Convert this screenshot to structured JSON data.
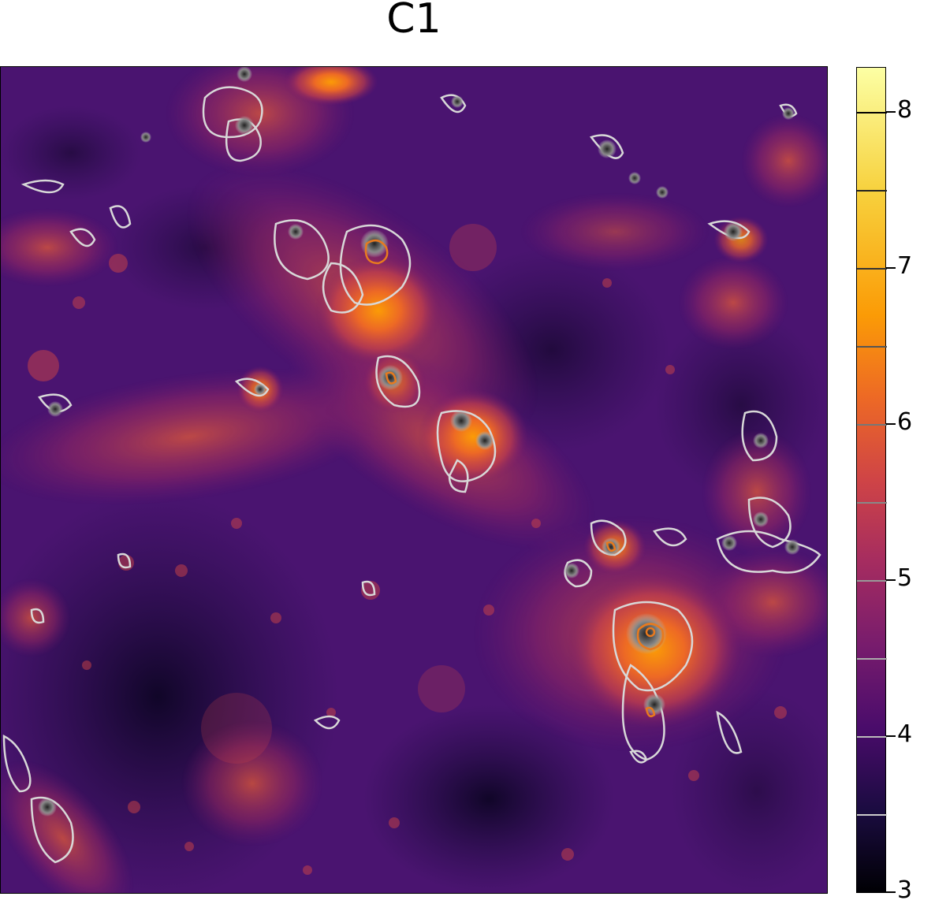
{
  "title": "C1",
  "colorbar": {
    "min": 3,
    "max": 8.25,
    "ticks": [
      "3",
      "4",
      "5",
      "6",
      "7",
      "8"
    ],
    "colormap": "inferno",
    "contour_levels": [
      3.5,
      4,
      4.5,
      5,
      5.5,
      6,
      6.5,
      7,
      7.5,
      8
    ]
  }
}
